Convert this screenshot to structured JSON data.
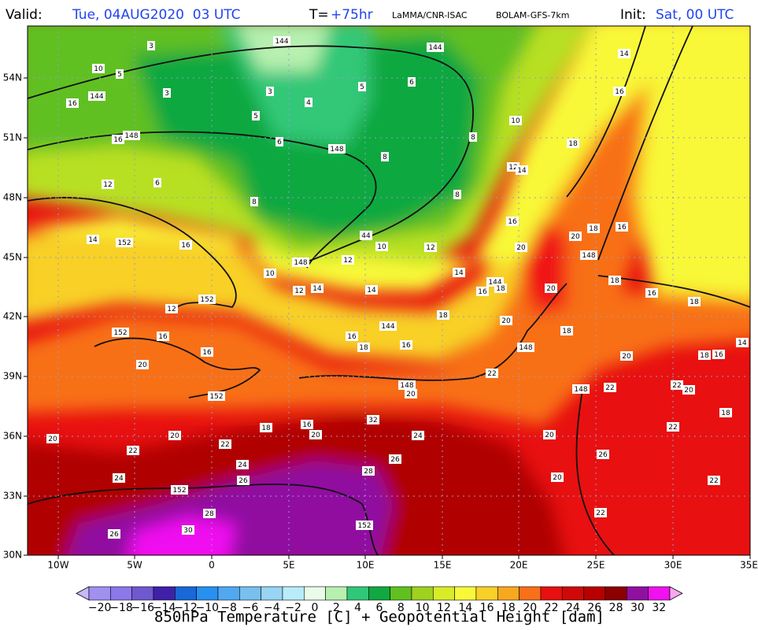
{
  "header": {
    "valid_label": "Valid:",
    "valid_time": "Tue, 04AUG2020  03 UTC",
    "t_label": "T=",
    "t_value": "+75hr",
    "source": "LaMMA/CNR-ISAC",
    "model": "BOLAM-GFS-7km",
    "init_label": "Init:",
    "init_time": "Sat, 00 UTC"
  },
  "map": {
    "lat_labels": [
      "54N",
      "51N",
      "48N",
      "45N",
      "42N",
      "39N",
      "36N",
      "33N",
      "30N"
    ],
    "lon_labels": [
      "10W",
      "5W",
      "0",
      "5E",
      "10E",
      "15E",
      "20E",
      "25E",
      "30E",
      "35E"
    ],
    "labels": [
      "3",
      "144",
      "144",
      "14",
      "10",
      "5",
      "3",
      "144",
      "5",
      "6",
      "3",
      "4",
      "16",
      "16",
      "5",
      "10",
      "148",
      "16",
      "6",
      "148",
      "8",
      "18",
      "8",
      "12",
      "14",
      "12",
      "6",
      "8",
      "8",
      "16",
      "18",
      "16",
      "20",
      "14",
      "152",
      "16",
      "44",
      "10",
      "12",
      "20",
      "148",
      "148",
      "12",
      "10",
      "14",
      "144",
      "16",
      "18",
      "18",
      "20",
      "12",
      "14",
      "14",
      "16",
      "18",
      "152",
      "12",
      "18",
      "20",
      "144",
      "18",
      "152",
      "16",
      "16",
      "18",
      "16",
      "148",
      "16",
      "20",
      "18",
      "16",
      "14",
      "20",
      "22",
      "148",
      "20",
      "148",
      "22",
      "22",
      "20",
      "152",
      "18",
      "32",
      "18",
      "16",
      "20",
      "24",
      "22",
      "20",
      "20",
      "22",
      "20",
      "22",
      "26",
      "24",
      "26",
      "28",
      "24",
      "26",
      "20",
      "22",
      "152",
      "28",
      "22",
      "152",
      "30",
      "26"
    ]
  },
  "colorbar": {
    "ticks": [
      "−20",
      "−18",
      "−16",
      "−14",
      "−12",
      "−10",
      "−8",
      "−6",
      "−4",
      "−2",
      "0",
      "2",
      "4",
      "6",
      "8",
      "10",
      "12",
      "14",
      "16",
      "18",
      "20",
      "22",
      "24",
      "26",
      "28",
      "30",
      "32"
    ],
    "colors": [
      "#a090f0",
      "#8c78e8",
      "#7058d0",
      "#4020a8",
      "#1868d8",
      "#2890f0",
      "#50a8f0",
      "#78c0f0",
      "#98d4f4",
      "#b8ecf8",
      "#e8fce8",
      "#b8f0b0",
      "#30c878",
      "#10a840",
      "#60c020",
      "#a0d020",
      "#d8ec28",
      "#f8f838",
      "#f8d028",
      "#f8a820",
      "#f87018",
      "#e81010",
      "#d00808",
      "#b80000",
      "#8c0000",
      "#9010a0",
      "#f010f0"
    ],
    "below_color": "#c8b8f8",
    "above_color": "#f8a8f0"
  },
  "footer": {
    "title": "850hPa Temperature [C] + Geopotential Height [dam]"
  }
}
